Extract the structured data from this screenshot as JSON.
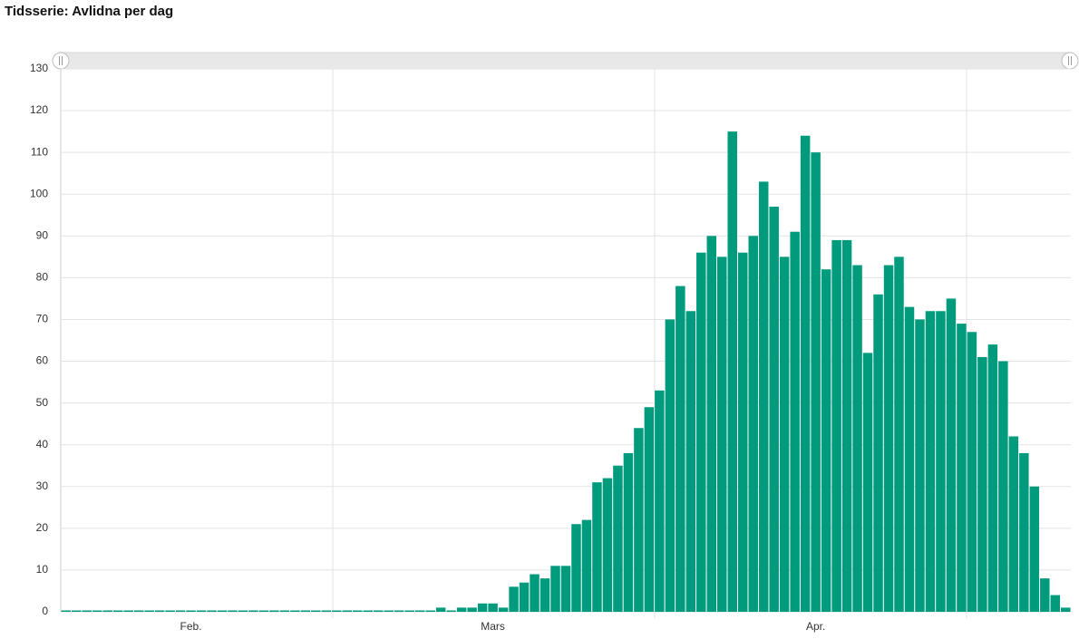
{
  "chart_data": {
    "type": "bar",
    "title": "Tidsserie: Avlidna per dag",
    "categories": [
      null,
      null,
      null,
      null,
      null,
      null,
      null,
      null,
      null,
      null,
      null,
      null,
      "Feb.",
      null,
      null,
      null,
      null,
      null,
      null,
      null,
      null,
      null,
      null,
      null,
      null,
      null,
      null,
      null,
      null,
      null,
      null,
      null,
      null,
      null,
      null,
      null,
      null,
      null,
      null,
      null,
      null,
      "Mars",
      null,
      null,
      null,
      null,
      null,
      null,
      null,
      null,
      null,
      null,
      null,
      null,
      null,
      null,
      null,
      null,
      null,
      null,
      null,
      null,
      null,
      null,
      null,
      null,
      null,
      null,
      null,
      null,
      null,
      null,
      "Apr.",
      null,
      null,
      null,
      null,
      null,
      null,
      null,
      null,
      null,
      null,
      null,
      null,
      null,
      null,
      null,
      null,
      null,
      null,
      null,
      null,
      null,
      null,
      null,
      null
    ],
    "values": [
      0,
      0,
      0,
      0,
      0,
      0,
      0,
      0,
      0,
      0,
      0,
      0,
      0,
      0,
      0,
      0,
      0,
      0,
      0,
      0,
      0,
      0,
      0,
      0,
      0,
      0,
      0,
      0,
      0,
      0,
      0,
      0,
      0,
      0,
      0,
      0,
      1,
      0,
      1,
      1,
      2,
      2,
      1,
      6,
      7,
      9,
      8,
      11,
      11,
      21,
      22,
      31,
      32,
      35,
      38,
      44,
      49,
      53,
      70,
      78,
      72,
      86,
      90,
      85,
      115,
      86,
      90,
      103,
      97,
      85,
      91,
      114,
      110,
      82,
      89,
      89,
      83,
      62,
      76,
      83,
      85,
      73,
      70,
      72,
      72,
      75,
      69,
      67,
      61,
      64,
      60,
      42,
      38,
      30,
      8,
      4,
      1
    ],
    "color": "#009b7d",
    "ylim": [
      0,
      130
    ],
    "yticks": [
      0,
      10,
      20,
      30,
      40,
      50,
      60,
      70,
      80,
      90,
      100,
      110,
      120,
      130
    ],
    "grid": true
  }
}
